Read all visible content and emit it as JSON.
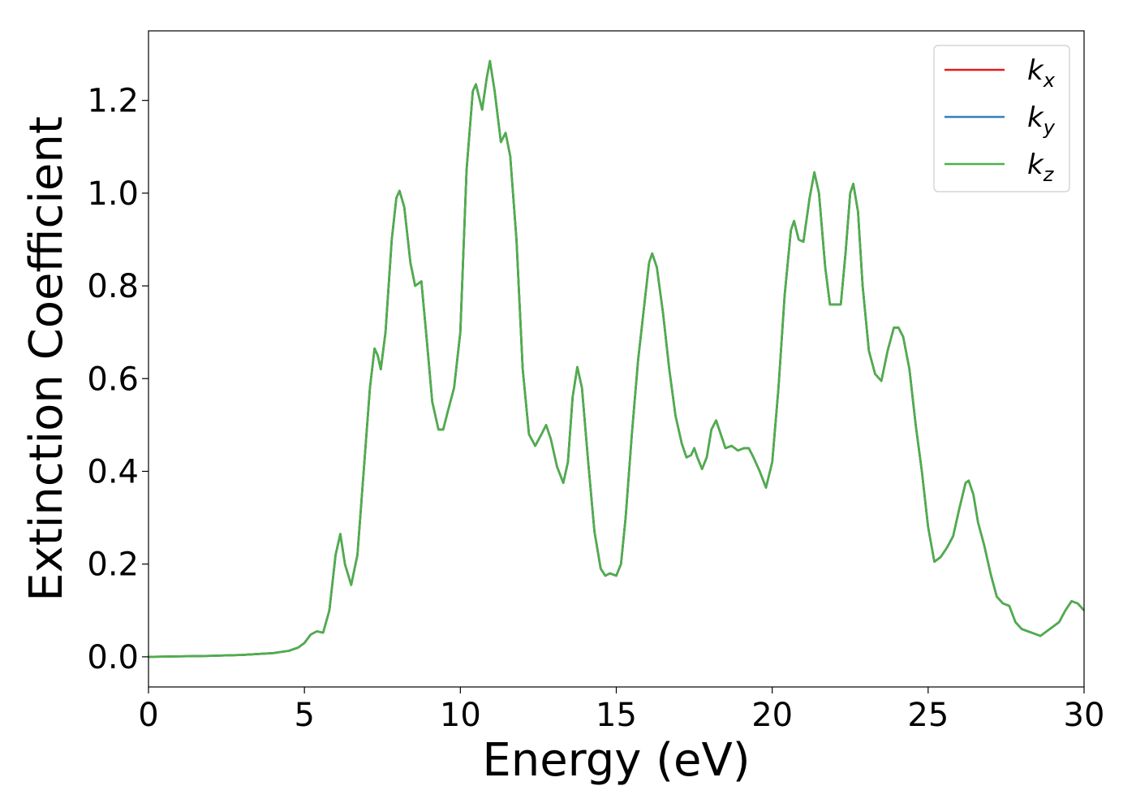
{
  "chart_data": {
    "type": "line",
    "xlabel": "Energy (eV)",
    "ylabel": "Extinction Coefficient",
    "xlim": [
      0,
      30
    ],
    "ylim": [
      -0.065,
      1.35
    ],
    "xticks": [
      0,
      5,
      10,
      15,
      20,
      25,
      30
    ],
    "xtick_labels": [
      "0",
      "5",
      "10",
      "15",
      "20",
      "25",
      "30"
    ],
    "yticks": [
      0.0,
      0.2,
      0.4,
      0.6,
      0.8,
      1.0,
      1.2
    ],
    "ytick_labels": [
      "0.0",
      "0.2",
      "0.4",
      "0.6",
      "0.8",
      "1.0",
      "1.2"
    ],
    "grid": false,
    "legend_position": "top-right",
    "series": [
      {
        "name": "k_x",
        "name_base": "k",
        "name_sub": "x",
        "color": "#e41a1c",
        "points": [
          [
            0,
            0.0
          ],
          [
            1,
            0.001
          ],
          [
            2,
            0.002
          ],
          [
            3,
            0.004
          ],
          [
            4,
            0.008
          ],
          [
            4.5,
            0.013
          ],
          [
            4.8,
            0.02
          ],
          [
            5.0,
            0.03
          ],
          [
            5.2,
            0.048
          ],
          [
            5.4,
            0.055
          ],
          [
            5.6,
            0.052
          ],
          [
            5.8,
            0.1
          ],
          [
            6.0,
            0.22
          ],
          [
            6.15,
            0.265
          ],
          [
            6.3,
            0.2
          ],
          [
            6.5,
            0.155
          ],
          [
            6.7,
            0.22
          ],
          [
            6.9,
            0.4
          ],
          [
            7.1,
            0.58
          ],
          [
            7.25,
            0.665
          ],
          [
            7.35,
            0.65
          ],
          [
            7.45,
            0.62
          ],
          [
            7.6,
            0.7
          ],
          [
            7.8,
            0.9
          ],
          [
            7.95,
            0.99
          ],
          [
            8.05,
            1.005
          ],
          [
            8.2,
            0.97
          ],
          [
            8.4,
            0.85
          ],
          [
            8.55,
            0.8
          ],
          [
            8.75,
            0.81
          ],
          [
            8.9,
            0.7
          ],
          [
            9.1,
            0.55
          ],
          [
            9.3,
            0.49
          ],
          [
            9.45,
            0.49
          ],
          [
            9.6,
            0.53
          ],
          [
            9.8,
            0.58
          ],
          [
            10.0,
            0.7
          ],
          [
            10.2,
            1.05
          ],
          [
            10.4,
            1.22
          ],
          [
            10.5,
            1.235
          ],
          [
            10.7,
            1.18
          ],
          [
            10.85,
            1.25
          ],
          [
            10.95,
            1.285
          ],
          [
            11.1,
            1.22
          ],
          [
            11.3,
            1.11
          ],
          [
            11.45,
            1.13
          ],
          [
            11.6,
            1.08
          ],
          [
            11.8,
            0.9
          ],
          [
            12.0,
            0.62
          ],
          [
            12.2,
            0.48
          ],
          [
            12.4,
            0.455
          ],
          [
            12.6,
            0.48
          ],
          [
            12.75,
            0.5
          ],
          [
            12.9,
            0.47
          ],
          [
            13.1,
            0.41
          ],
          [
            13.3,
            0.375
          ],
          [
            13.45,
            0.42
          ],
          [
            13.6,
            0.56
          ],
          [
            13.75,
            0.625
          ],
          [
            13.9,
            0.58
          ],
          [
            14.1,
            0.42
          ],
          [
            14.3,
            0.27
          ],
          [
            14.5,
            0.19
          ],
          [
            14.65,
            0.175
          ],
          [
            14.8,
            0.18
          ],
          [
            15.0,
            0.175
          ],
          [
            15.15,
            0.2
          ],
          [
            15.3,
            0.3
          ],
          [
            15.5,
            0.48
          ],
          [
            15.7,
            0.64
          ],
          [
            15.9,
            0.76
          ],
          [
            16.05,
            0.85
          ],
          [
            16.15,
            0.87
          ],
          [
            16.3,
            0.84
          ],
          [
            16.5,
            0.74
          ],
          [
            16.7,
            0.62
          ],
          [
            16.9,
            0.52
          ],
          [
            17.1,
            0.46
          ],
          [
            17.25,
            0.43
          ],
          [
            17.4,
            0.435
          ],
          [
            17.5,
            0.45
          ],
          [
            17.6,
            0.43
          ],
          [
            17.75,
            0.405
          ],
          [
            17.9,
            0.43
          ],
          [
            18.05,
            0.49
          ],
          [
            18.2,
            0.51
          ],
          [
            18.35,
            0.48
          ],
          [
            18.5,
            0.45
          ],
          [
            18.7,
            0.455
          ],
          [
            18.9,
            0.445
          ],
          [
            19.1,
            0.45
          ],
          [
            19.25,
            0.45
          ],
          [
            19.4,
            0.43
          ],
          [
            19.6,
            0.4
          ],
          [
            19.8,
            0.365
          ],
          [
            20.0,
            0.42
          ],
          [
            20.2,
            0.58
          ],
          [
            20.4,
            0.78
          ],
          [
            20.6,
            0.92
          ],
          [
            20.7,
            0.94
          ],
          [
            20.85,
            0.9
          ],
          [
            21.0,
            0.895
          ],
          [
            21.2,
            0.99
          ],
          [
            21.35,
            1.045
          ],
          [
            21.5,
            1.0
          ],
          [
            21.7,
            0.84
          ],
          [
            21.85,
            0.76
          ],
          [
            22.0,
            0.76
          ],
          [
            22.2,
            0.76
          ],
          [
            22.35,
            0.87
          ],
          [
            22.5,
            1.0
          ],
          [
            22.6,
            1.02
          ],
          [
            22.75,
            0.96
          ],
          [
            22.9,
            0.8
          ],
          [
            23.1,
            0.66
          ],
          [
            23.3,
            0.61
          ],
          [
            23.5,
            0.595
          ],
          [
            23.7,
            0.66
          ],
          [
            23.9,
            0.71
          ],
          [
            24.05,
            0.71
          ],
          [
            24.2,
            0.69
          ],
          [
            24.4,
            0.62
          ],
          [
            24.6,
            0.5
          ],
          [
            24.8,
            0.4
          ],
          [
            25.0,
            0.28
          ],
          [
            25.2,
            0.205
          ],
          [
            25.4,
            0.215
          ],
          [
            25.6,
            0.235
          ],
          [
            25.8,
            0.26
          ],
          [
            26.0,
            0.32
          ],
          [
            26.2,
            0.375
          ],
          [
            26.3,
            0.38
          ],
          [
            26.45,
            0.35
          ],
          [
            26.6,
            0.29
          ],
          [
            26.8,
            0.24
          ],
          [
            27.0,
            0.18
          ],
          [
            27.2,
            0.13
          ],
          [
            27.4,
            0.115
          ],
          [
            27.6,
            0.11
          ],
          [
            27.8,
            0.075
          ],
          [
            28.0,
            0.06
          ],
          [
            28.2,
            0.055
          ],
          [
            28.4,
            0.05
          ],
          [
            28.6,
            0.045
          ],
          [
            28.8,
            0.055
          ],
          [
            29.0,
            0.065
          ],
          [
            29.2,
            0.075
          ],
          [
            29.4,
            0.1
          ],
          [
            29.6,
            0.12
          ],
          [
            29.8,
            0.115
          ],
          [
            30.0,
            0.1
          ]
        ]
      },
      {
        "name": "k_y",
        "name_base": "k",
        "name_sub": "y",
        "color": "#377eb8",
        "same_as": 0
      },
      {
        "name": "k_z",
        "name_base": "k",
        "name_sub": "z",
        "color": "#4daf4a",
        "same_as": 0
      }
    ]
  }
}
